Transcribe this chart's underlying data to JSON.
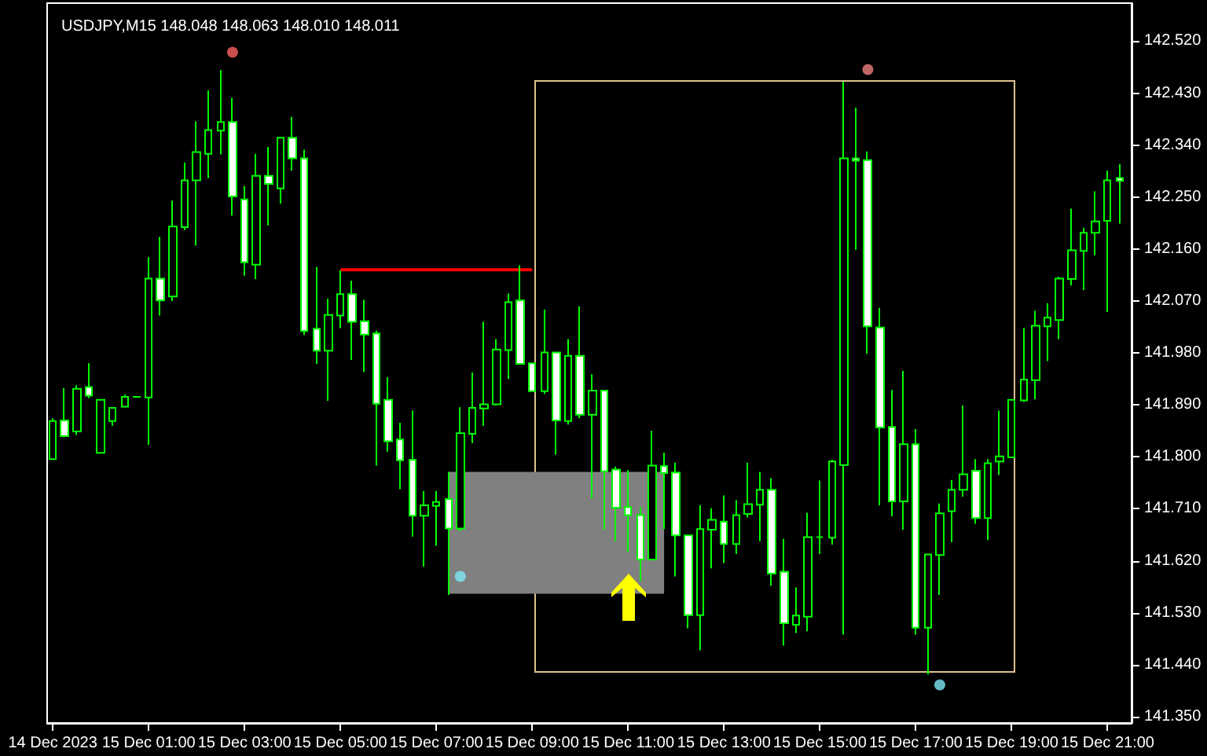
{
  "chart_data": {
    "type": "candlestick",
    "title": "USDJPY,M15 148.048 148.063 148.010 148.011",
    "color": "#00ff00",
    "grid": false,
    "xlim": [
      "2023-12-14T22:53",
      "2023-12-15T21:30"
    ],
    "x": [
      "2023-12-14T23:00",
      "2023-12-14T23:15",
      "2023-12-14T23:30",
      "2023-12-14T23:45",
      "2023-12-15T00:00",
      "2023-12-15T00:15",
      "2023-12-15T00:30",
      "2023-12-15T00:45",
      "2023-12-15T01:00",
      "2023-12-15T01:15",
      "2023-12-15T01:30",
      "2023-12-15T01:45",
      "2023-12-15T02:00",
      "2023-12-15T02:15",
      "2023-12-15T02:30",
      "2023-12-15T02:45",
      "2023-12-15T03:00",
      "2023-12-15T03:15",
      "2023-12-15T03:30",
      "2023-12-15T03:45",
      "2023-12-15T04:00",
      "2023-12-15T04:15",
      "2023-12-15T04:30",
      "2023-12-15T04:45",
      "2023-12-15T05:00",
      "2023-12-15T05:15",
      "2023-12-15T05:30",
      "2023-12-15T05:45",
      "2023-12-15T06:00",
      "2023-12-15T06:15",
      "2023-12-15T06:30",
      "2023-12-15T06:45",
      "2023-12-15T07:00",
      "2023-12-15T07:15",
      "2023-12-15T07:30",
      "2023-12-15T07:45",
      "2023-12-15T08:00",
      "2023-12-15T08:15",
      "2023-12-15T08:30",
      "2023-12-15T08:45",
      "2023-12-15T09:00",
      "2023-12-15T09:15",
      "2023-12-15T09:30",
      "2023-12-15T09:45",
      "2023-12-15T10:00",
      "2023-12-15T10:15",
      "2023-12-15T10:30",
      "2023-12-15T10:45",
      "2023-12-15T11:00",
      "2023-12-15T11:15",
      "2023-12-15T11:30",
      "2023-12-15T11:45",
      "2023-12-15T12:00",
      "2023-12-15T12:15",
      "2023-12-15T12:30",
      "2023-12-15T12:45",
      "2023-12-15T13:00",
      "2023-12-15T13:15",
      "2023-12-15T13:30",
      "2023-12-15T13:45",
      "2023-12-15T14:00",
      "2023-12-15T14:15",
      "2023-12-15T14:30",
      "2023-12-15T14:45",
      "2023-12-15T15:00",
      "2023-12-15T15:15",
      "2023-12-15T15:30",
      "2023-12-15T15:45",
      "2023-12-15T16:00",
      "2023-12-15T16:15",
      "2023-12-15T16:30",
      "2023-12-15T16:45",
      "2023-12-15T17:00",
      "2023-12-15T17:15",
      "2023-12-15T17:30",
      "2023-12-15T17:45",
      "2023-12-15T18:00",
      "2023-12-15T18:15",
      "2023-12-15T18:30",
      "2023-12-15T18:45",
      "2023-12-15T19:00",
      "2023-12-15T19:15",
      "2023-12-15T19:30",
      "2023-12-15T19:45",
      "2023-12-15T20:00",
      "2023-12-15T20:15",
      "2023-12-15T20:30",
      "2023-12-15T20:45",
      "2023-12-15T21:00",
      "2023-12-15T21:15"
    ],
    "ohlc": [
      [
        141.796,
        141.867,
        141.795,
        141.862
      ],
      [
        141.863,
        141.919,
        141.834,
        141.836
      ],
      [
        141.844,
        141.924,
        141.838,
        141.918
      ],
      [
        141.921,
        141.962,
        141.902,
        141.906
      ],
      [
        141.807,
        141.9,
        141.806,
        141.899
      ],
      [
        141.862,
        141.886,
        141.854,
        141.885
      ],
      [
        141.887,
        141.908,
        141.887,
        141.904
      ],
      [
        141.904,
        141.904,
        141.904,
        141.904
      ],
      [
        141.903,
        142.146,
        141.821,
        142.109
      ],
      [
        142.109,
        142.181,
        142.045,
        142.071
      ],
      [
        142.078,
        142.244,
        142.07,
        142.199
      ],
      [
        142.198,
        142.31,
        142.193,
        142.279
      ],
      [
        142.279,
        142.381,
        142.166,
        142.328
      ],
      [
        142.325,
        142.435,
        142.283,
        142.366
      ],
      [
        142.365,
        142.47,
        142.324,
        142.38
      ],
      [
        142.38,
        142.422,
        142.218,
        142.251
      ],
      [
        142.246,
        142.269,
        142.114,
        142.137
      ],
      [
        142.133,
        142.325,
        142.108,
        142.287
      ],
      [
        142.287,
        142.337,
        142.201,
        142.273
      ],
      [
        142.265,
        142.353,
        142.239,
        142.353
      ],
      [
        142.353,
        142.389,
        142.296,
        142.317
      ],
      [
        142.317,
        142.332,
        142.011,
        142.018
      ],
      [
        142.022,
        142.129,
        141.961,
        141.984
      ],
      [
        141.984,
        142.074,
        141.897,
        142.046
      ],
      [
        142.045,
        142.123,
        142.023,
        142.082
      ],
      [
        142.082,
        142.105,
        141.968,
        142.034
      ],
      [
        142.035,
        142.072,
        141.947,
        142.012
      ],
      [
        142.014,
        142.019,
        141.785,
        141.892
      ],
      [
        141.899,
        141.938,
        141.809,
        141.827
      ],
      [
        141.83,
        141.859,
        141.744,
        141.794
      ],
      [
        141.795,
        141.88,
        141.662,
        141.698
      ],
      [
        141.698,
        141.741,
        141.61,
        141.716
      ],
      [
        141.715,
        141.741,
        141.646,
        141.722
      ],
      [
        141.727,
        141.774,
        141.561,
        141.676
      ],
      [
        141.676,
        141.886,
        141.671,
        141.841
      ],
      [
        141.84,
        141.946,
        141.824,
        141.885
      ],
      [
        141.884,
        142.034,
        141.854,
        141.891
      ],
      [
        141.891,
        142.004,
        141.889,
        141.986
      ],
      [
        141.985,
        142.083,
        141.935,
        142.068
      ],
      [
        142.071,
        142.132,
        141.961,
        141.961
      ],
      [
        141.962,
        141.962,
        141.914,
        141.914
      ],
      [
        141.914,
        142.055,
        141.909,
        141.981
      ],
      [
        141.981,
        141.981,
        141.804,
        141.863
      ],
      [
        141.862,
        142.004,
        141.856,
        141.975
      ],
      [
        141.975,
        142.061,
        141.867,
        141.873
      ],
      [
        141.873,
        141.943,
        141.728,
        141.915
      ],
      [
        141.915,
        141.915,
        141.674,
        141.775
      ],
      [
        141.778,
        141.783,
        141.654,
        141.712
      ],
      [
        141.713,
        141.777,
        141.635,
        141.699
      ],
      [
        141.699,
        141.713,
        141.585,
        141.622
      ],
      [
        141.622,
        141.845,
        141.622,
        141.785
      ],
      [
        141.784,
        141.807,
        141.675,
        141.772
      ],
      [
        141.773,
        141.79,
        141.593,
        141.664
      ],
      [
        141.664,
        141.664,
        141.503,
        141.526
      ],
      [
        141.526,
        141.716,
        141.465,
        141.675
      ],
      [
        141.674,
        141.711,
        141.607,
        141.691
      ],
      [
        141.688,
        141.733,
        141.616,
        141.649
      ],
      [
        141.649,
        141.725,
        141.632,
        141.699
      ],
      [
        141.701,
        141.79,
        141.695,
        141.718
      ],
      [
        141.717,
        141.774,
        141.654,
        141.743
      ],
      [
        141.743,
        141.763,
        141.577,
        141.598
      ],
      [
        141.601,
        141.658,
        141.473,
        141.512
      ],
      [
        141.509,
        141.574,
        141.495,
        141.525
      ],
      [
        141.523,
        141.703,
        141.498,
        141.661
      ],
      [
        141.661,
        141.759,
        141.632,
        141.661
      ],
      [
        141.66,
        141.795,
        141.648,
        141.792
      ],
      [
        141.786,
        142.45,
        141.492,
        142.317
      ],
      [
        142.317,
        142.405,
        142.159,
        142.313
      ],
      [
        142.314,
        142.329,
        141.979,
        142.026
      ],
      [
        142.024,
        142.058,
        141.716,
        141.851
      ],
      [
        141.852,
        141.916,
        141.697,
        141.723
      ],
      [
        141.723,
        141.949,
        141.674,
        141.822
      ],
      [
        141.822,
        141.848,
        141.492,
        141.504
      ],
      [
        141.504,
        141.631,
        141.423,
        141.631
      ],
      [
        141.63,
        141.719,
        141.561,
        141.702
      ],
      [
        141.706,
        141.76,
        141.652,
        141.743
      ],
      [
        141.743,
        141.889,
        141.731,
        141.77
      ],
      [
        141.776,
        141.796,
        141.684,
        141.694
      ],
      [
        141.694,
        141.796,
        141.656,
        141.789
      ],
      [
        141.792,
        141.88,
        141.769,
        141.801
      ],
      [
        141.799,
        141.899,
        141.799,
        141.899
      ],
      [
        141.898,
        142.023,
        141.895,
        141.934
      ],
      [
        141.933,
        142.053,
        141.9,
        142.027
      ],
      [
        142.026,
        142.066,
        141.966,
        142.041
      ],
      [
        142.037,
        142.112,
        142.004,
        142.109
      ],
      [
        142.108,
        142.23,
        142.097,
        142.158
      ],
      [
        142.157,
        142.197,
        142.089,
        142.188
      ],
      [
        142.188,
        142.26,
        142.149,
        142.208
      ],
      [
        142.209,
        142.296,
        142.051,
        142.279
      ],
      [
        142.283,
        142.307,
        142.204,
        142.278
      ]
    ],
    "series": [
      {
        "type": "line",
        "color": "#ff0000",
        "x": [
          "2023-12-15T05:00",
          "2023-12-15T09:00"
        ],
        "values": [
          142.124,
          142.124
        ]
      },
      {
        "type": "area",
        "color": "#808080",
        "x": [
          "2023-12-15T07:15",
          "2023-12-15T11:45"
        ],
        "values": [
          null,
          null
        ],
        "lower": [
          141.563,
          141.563
        ],
        "upper": [
          141.774,
          141.774
        ]
      },
      {
        "type": "scatter",
        "marker": "circle",
        "color": "#ff6060",
        "x": [
          "2023-12-15T02:45"
        ],
        "values": [
          142.501
        ]
      },
      {
        "type": "scatter",
        "marker": "circle",
        "color": "#f08080",
        "x": [
          "2023-12-15T16:00"
        ],
        "values": [
          142.471
        ]
      },
      {
        "type": "scatter",
        "marker": "circle",
        "color": "#80e8f8",
        "x": [
          "2023-12-15T07:30",
          "2023-12-15T17:30"
        ],
        "values": [
          141.593,
          141.405
        ]
      }
    ],
    "ylim": [
      141.339,
      142.586
    ],
    "yticks": [
      {
        "value": 142.52,
        "label": "142.520"
      },
      {
        "value": 142.43,
        "label": "142.430"
      },
      {
        "value": 142.34,
        "label": "142.340"
      },
      {
        "value": 142.25,
        "label": "142.250"
      },
      {
        "value": 142.16,
        "label": "142.160"
      },
      {
        "value": 142.07,
        "label": "142.070"
      },
      {
        "value": 141.98,
        "label": "141.980"
      },
      {
        "value": 141.89,
        "label": "141.890"
      },
      {
        "value": 141.8,
        "label": "141.800"
      },
      {
        "value": 141.71,
        "label": "141.710"
      },
      {
        "value": 141.62,
        "label": "141.620"
      },
      {
        "value": 141.53,
        "label": "141.530"
      },
      {
        "value": 141.44,
        "label": "141.440"
      },
      {
        "value": 141.35,
        "label": "141.350"
      }
    ],
    "xticks": [
      {
        "value": "2023-12-14T23:00",
        "label": "14 Dec 2023"
      },
      {
        "value": "2023-12-15T01:00",
        "label": "15 Dec 01:00"
      },
      {
        "value": "2023-12-15T03:00",
        "label": "15 Dec 03:00"
      },
      {
        "value": "2023-12-15T05:00",
        "label": "15 Dec 05:00"
      },
      {
        "value": "2023-12-15T07:00",
        "label": "15 Dec 07:00"
      },
      {
        "value": "2023-12-15T09:00",
        "label": "15 Dec 09:00"
      },
      {
        "value": "2023-12-15T11:00",
        "label": "15 Dec 11:00"
      },
      {
        "value": "2023-12-15T13:00",
        "label": "15 Dec 13:00"
      },
      {
        "value": "2023-12-15T15:00",
        "label": "15 Dec 15:00"
      },
      {
        "value": "2023-12-15T17:00",
        "label": "15 Dec 17:00"
      },
      {
        "value": "2023-12-15T19:00",
        "label": "15 Dec 19:00"
      },
      {
        "value": "2023-12-15T21:00",
        "label": "15 Dec 21:00"
      }
    ]
  }
}
